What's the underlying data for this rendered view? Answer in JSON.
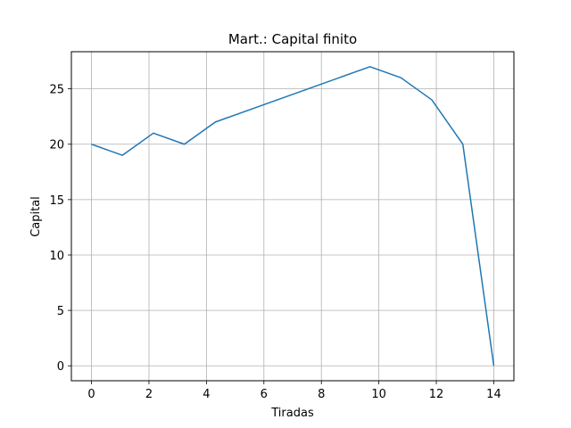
{
  "chart_data": {
    "type": "line",
    "title": "Mart.: Capital finito",
    "xlabel": "Tiradas",
    "ylabel": "Capital",
    "xlim": [
      -0.7,
      14.7
    ],
    "ylim": [
      -1.35,
      28.35
    ],
    "xticks": [
      0,
      2,
      4,
      6,
      8,
      10,
      12,
      14
    ],
    "yticks": [
      0,
      5,
      10,
      15,
      20,
      25
    ],
    "grid": true,
    "series": [
      {
        "color": "#1f77b4",
        "x": [
          0,
          1.077,
          2.154,
          3.231,
          4.308,
          9.692,
          10.769,
          11.846,
          12.923,
          14
        ],
        "y": [
          20,
          19,
          21,
          20,
          22,
          27,
          26,
          24,
          20,
          0
        ]
      }
    ]
  }
}
